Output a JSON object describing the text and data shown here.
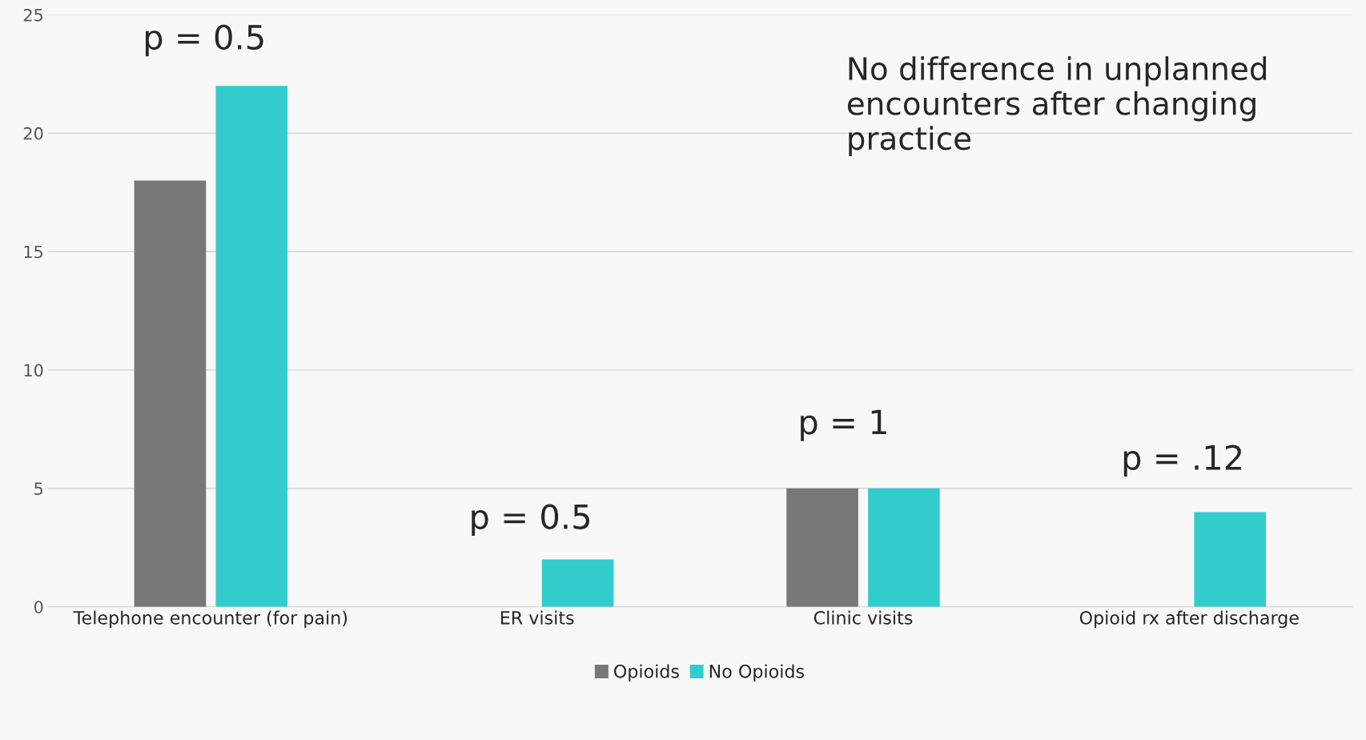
{
  "chart_data": {
    "type": "bar",
    "categories": [
      "Telephone encounter (for pain)",
      "ER visits",
      "Clinic visits",
      "Opioid rx after discharge"
    ],
    "series": [
      {
        "name": "Opioids",
        "color": "#787878",
        "values": [
          18,
          null,
          5,
          null
        ]
      },
      {
        "name": "No Opioids",
        "color": "#33cccc",
        "values": [
          22,
          2,
          5,
          4
        ]
      }
    ],
    "ylim": [
      0,
      25
    ],
    "yticks": [
      0,
      5,
      10,
      15,
      20,
      25
    ],
    "grid": "y",
    "legend": "bottom",
    "annotations": [
      "p = 0.5",
      "p = 0.5",
      "p = 1",
      "p = .12",
      "No difference in unplanned encounters after changing practice"
    ]
  }
}
